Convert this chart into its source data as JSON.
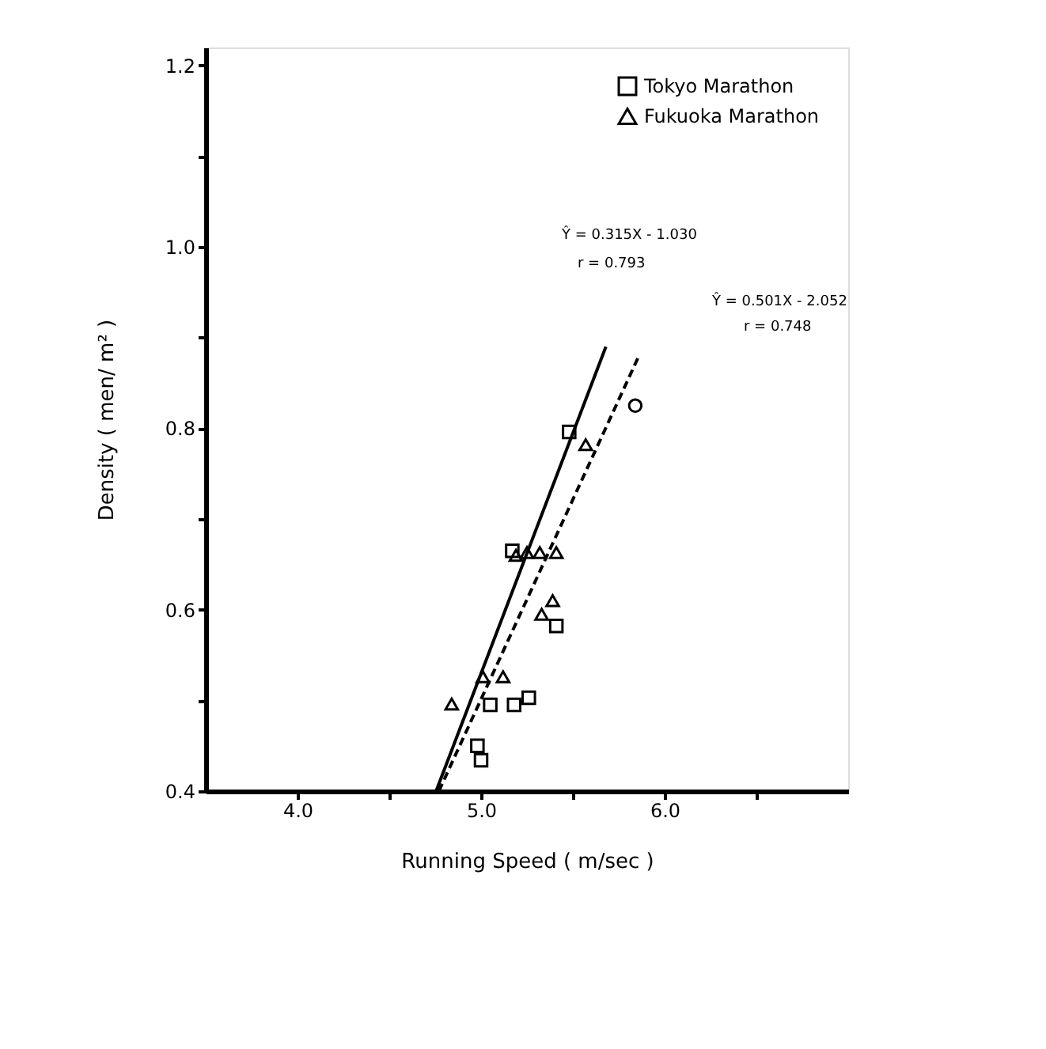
{
  "chart_data": {
    "type": "scatter",
    "xlabel": "Running  Speed ( m/sec )",
    "ylabel": "Density ( men/ m² )",
    "xlim": [
      3.5,
      7.0
    ],
    "ylim": [
      0.4,
      1.22
    ],
    "xticks": [
      {
        "value": 4.0,
        "label": "4.0"
      },
      {
        "value": 4.5,
        "label": null
      },
      {
        "value": 5.0,
        "label": "5.0"
      },
      {
        "value": 5.5,
        "label": null
      },
      {
        "value": 6.0,
        "label": "6.0"
      },
      {
        "value": 6.5,
        "label": null
      }
    ],
    "yticks": [
      {
        "value": 0.4,
        "label": "0.4"
      },
      {
        "value": 0.5,
        "label": null
      },
      {
        "value": 0.6,
        "label": "0.6"
      },
      {
        "value": 0.7,
        "label": null
      },
      {
        "value": 0.8,
        "label": "0.8"
      },
      {
        "value": 0.9,
        "label": null
      },
      {
        "value": 1.0,
        "label": "1.0"
      },
      {
        "value": 1.1,
        "label": null
      },
      {
        "value": 1.2,
        "label": "1.2"
      }
    ],
    "grid": false,
    "legend": "top right",
    "series": [
      {
        "name": "Tokyo Marathon",
        "marker": "square",
        "color": "#000000",
        "x": [
          5.17,
          5.41,
          5.05,
          5.18,
          4.98,
          5.0,
          5.48,
          5.26
        ],
        "values": [
          0.665,
          0.582,
          0.495,
          0.495,
          0.45,
          0.434,
          0.796,
          0.503
        ]
      },
      {
        "name": "Fukuoka Marathon",
        "marker": "triangle",
        "color": "#000000",
        "x": [
          5.25,
          5.32,
          5.41,
          5.39,
          5.33,
          5.01,
          5.12,
          4.84,
          5.57,
          5.19
        ],
        "values": [
          0.663,
          0.663,
          0.663,
          0.61,
          0.595,
          0.526,
          0.526,
          0.496,
          0.782,
          0.66
        ]
      },
      {
        "type": "line",
        "line_style": "dashed",
        "color": "#000000",
        "x": [
          4.77,
          5.86
        ],
        "values": [
          0.4,
          0.88
        ]
      },
      {
        "type": "line",
        "line_style": "solid",
        "color": "#000000",
        "x": [
          4.755,
          5.68
        ],
        "values": [
          0.4,
          0.89
        ]
      },
      {
        "marker": "circle",
        "color": "#000000",
        "x": [
          5.84
        ],
        "values": [
          0.825
        ]
      }
    ],
    "annotations": [
      "Ŷ = 0.315X - 1.030",
      "r = 0.793",
      "Ŷ = 0.501X - 2.052",
      "r = 0.748"
    ]
  }
}
